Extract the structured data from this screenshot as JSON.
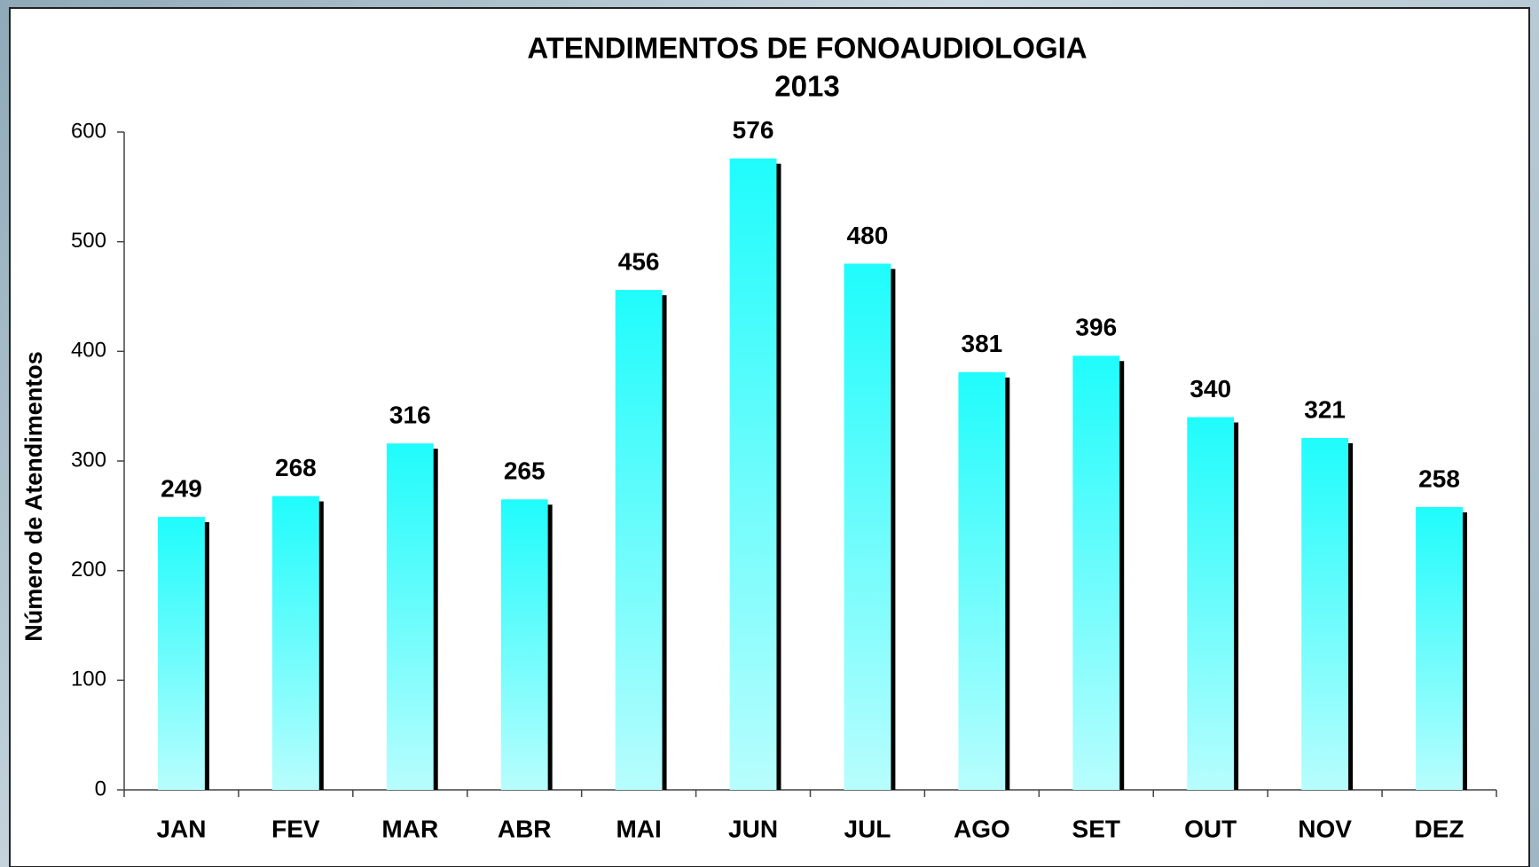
{
  "chart_data": {
    "type": "bar",
    "title": "ATENDIMENTOS DE FONOAUDIOLOGIA",
    "subtitle": "2013",
    "y_label": "Número de Atendimentos",
    "categories": [
      "JAN",
      "FEV",
      "MAR",
      "ABR",
      "MAI",
      "JUN",
      "JUL",
      "AGO",
      "SET",
      "OUT",
      "NOV",
      "DEZ"
    ],
    "values": [
      249,
      268,
      316,
      265,
      456,
      576,
      480,
      381,
      396,
      340,
      321,
      258
    ],
    "color": "#1ffcfc",
    "ylim": [
      0,
      600
    ],
    "yticks": [
      0,
      100,
      200,
      300,
      400,
      500,
      600
    ],
    "grid": false
  }
}
